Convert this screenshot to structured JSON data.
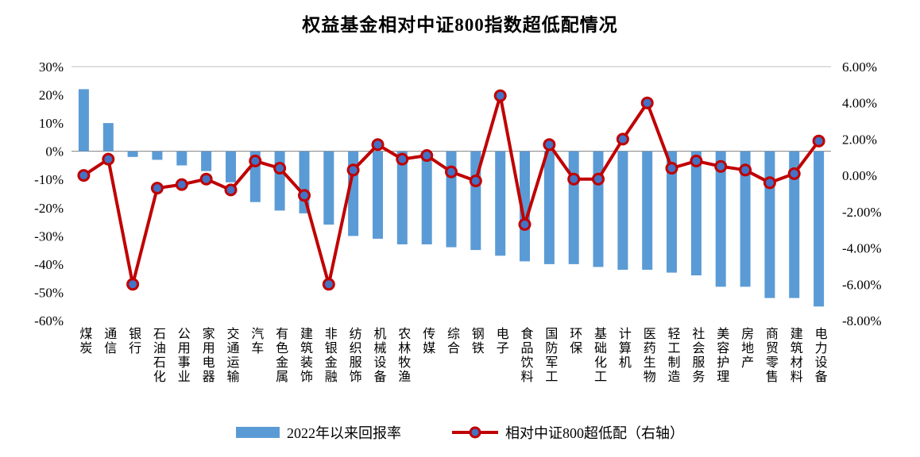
{
  "title": "权益基金相对中证800指数超低配情况",
  "chart_data": {
    "type": "combo",
    "title": "权益基金相对中证800指数超低配情况",
    "categories": [
      "煤炭",
      "通信",
      "银行",
      "石油石化",
      "公用事业",
      "家用电器",
      "交通运输",
      "汽车",
      "有色金属",
      "建筑装饰",
      "非银金融",
      "纺织服饰",
      "机械设备",
      "农林牧渔",
      "传媒",
      "综合",
      "钢铁",
      "电子",
      "食品饮料",
      "国防军工",
      "环保",
      "基础化工",
      "计算机",
      "医药生物",
      "轻工制造",
      "社会服务",
      "美容护理",
      "房地产",
      "商贸零售",
      "建筑材料",
      "电力设备"
    ],
    "series": [
      {
        "name": "2022年以来回报率",
        "type": "bar",
        "axis": "left",
        "color": "#5B9BD5",
        "values": [
          22,
          10,
          -2,
          -3,
          -5,
          -7,
          -11,
          -18,
          -21,
          -22,
          -26,
          -30,
          -31,
          -33,
          -33,
          -34,
          -35,
          -37,
          -39,
          -40,
          -40,
          -41,
          -42,
          -42,
          -43,
          -44,
          -48,
          -48,
          -52,
          -52,
          -55
        ]
      },
      {
        "name": "相对中证800超低配（右轴）",
        "type": "line",
        "axis": "right",
        "color": "#C00000",
        "marker_fill": "#4472C4",
        "values": [
          0.0,
          0.9,
          -6.0,
          -0.7,
          -0.5,
          -0.2,
          -0.8,
          0.8,
          0.4,
          -1.1,
          -6.0,
          0.3,
          1.7,
          0.9,
          1.1,
          0.2,
          -0.3,
          4.4,
          -2.7,
          1.7,
          -0.2,
          -0.2,
          2.0,
          4.0,
          0.4,
          0.8,
          0.5,
          0.3,
          -0.4,
          0.1,
          1.9
        ]
      }
    ],
    "left_axis": {
      "max": 30,
      "min": -60,
      "step": 10,
      "tick_labels": [
        "30%",
        "20%",
        "10%",
        "0%",
        "-10%",
        "-20%",
        "-30%",
        "-40%",
        "-50%",
        "-60%"
      ]
    },
    "right_axis": {
      "max": 6,
      "min": -8,
      "step": 2,
      "tick_labels": [
        "6.00%",
        "4.00%",
        "2.00%",
        "0.00%",
        "-2.00%",
        "-4.00%",
        "-6.00%",
        "-8.00%"
      ]
    },
    "legend_position": "bottom",
    "grid": false
  }
}
